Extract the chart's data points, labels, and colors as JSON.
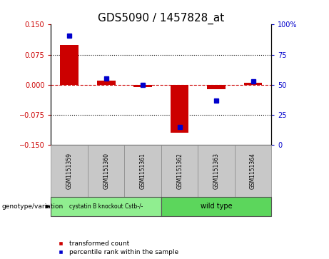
{
  "title": "GDS5090 / 1457828_at",
  "samples": [
    "GSM1151359",
    "GSM1151360",
    "GSM1151361",
    "GSM1151362",
    "GSM1151363",
    "GSM1151364"
  ],
  "red_values": [
    0.1,
    0.01,
    -0.005,
    -0.12,
    -0.01,
    0.005
  ],
  "blue_values_pct": [
    91,
    55,
    50,
    15,
    37,
    53
  ],
  "group1_label": "cystatin B knockout Cstb-/-",
  "group2_label": "wild type",
  "group1_color": "#90EE90",
  "group2_color": "#5cd65c",
  "sample_box_color": "#c8c8c8",
  "ylim_left": [
    -0.15,
    0.15
  ],
  "ylim_right": [
    0,
    100
  ],
  "yticks_left": [
    -0.15,
    -0.075,
    0,
    0.075,
    0.15
  ],
  "yticks_right": [
    0,
    25,
    50,
    75,
    100
  ],
  "bar_width": 0.5,
  "red_color": "#cc0000",
  "blue_color": "#0000cc",
  "legend_red_label": "transformed count",
  "legend_blue_label": "percentile rank within the sample",
  "zero_line_color": "#cc0000",
  "dot_line_color": "#000000",
  "title_fontsize": 11
}
